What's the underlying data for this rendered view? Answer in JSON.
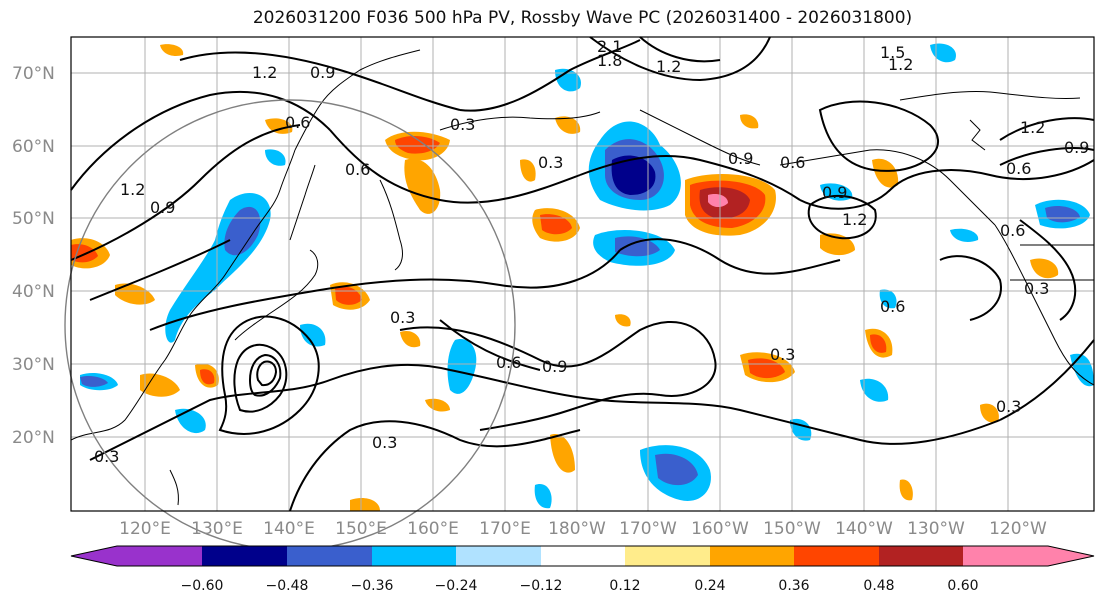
{
  "title": "2026031200 F036 500 hPa PV, Rossby Wave PC (2026031400 - 2026031800)",
  "map": {
    "lat_labels": [
      "70°N",
      "60°N",
      "50°N",
      "40°N",
      "30°N",
      "20°N"
    ],
    "lon_labels": [
      "120°E",
      "130°E",
      "140°E",
      "150°E",
      "160°E",
      "170°E",
      "180°W",
      "170°W",
      "160°W",
      "150°W",
      "140°W",
      "130°W",
      "120°W"
    ],
    "contour_labels": [
      "1.2",
      "0.9",
      "2.1",
      "1.8",
      "1.2",
      "1.5",
      "1.2",
      "0.6",
      "0.3",
      "0.3",
      "0.6",
      "1.2",
      "0.9",
      "0.9",
      "0.6",
      "0.9",
      "1.2",
      "0.9",
      "1.2",
      "0.6",
      "0.6",
      "0.3",
      "0.6",
      "0.3",
      "0.6",
      "0.9",
      "0.3",
      "0.3",
      "0.3",
      "0.3"
    ]
  },
  "colorbar": {
    "tick_labels": [
      "−0.60",
      "−0.48",
      "−0.36",
      "−0.24",
      "−0.12",
      "0.12",
      "0.24",
      "0.36",
      "0.48",
      "0.60"
    ],
    "colors": [
      "#9932cc",
      "#00008b",
      "#3a5fcd",
      "#00bfff",
      "#b0e2ff",
      "#ffffff",
      "#ffec8b",
      "#ffa500",
      "#ff4500",
      "#b22222",
      "#ff82ab"
    ]
  }
}
